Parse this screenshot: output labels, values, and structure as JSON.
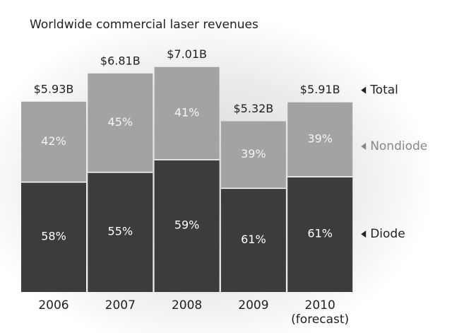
{
  "chart_data": {
    "type": "stacked_bar",
    "title": "Worldwide commercial laser revenues",
    "categories": [
      "2006",
      "2007",
      "2008",
      "2009",
      "2010 (forecast)"
    ],
    "series": [
      {
        "name": "Diode",
        "color": "#3c3c3c",
        "values": [
          58,
          55,
          59,
          61,
          61
        ],
        "value_labels": [
          "58%",
          "55%",
          "59%",
          "61%",
          "61%"
        ]
      },
      {
        "name": "Nondiode",
        "color": "#a3a3a3",
        "values": [
          42,
          45,
          41,
          39,
          39
        ],
        "value_labels": [
          "42%",
          "45%",
          "41%",
          "39%",
          "39%"
        ]
      }
    ],
    "totals": {
      "name": "Total",
      "values": [
        5.93,
        6.81,
        7.01,
        5.32,
        5.91
      ],
      "value_labels": [
        "$5.93B",
        "$6.81B",
        "$7.01B",
        "$5.32B",
        "$5.91B"
      ]
    }
  }
}
